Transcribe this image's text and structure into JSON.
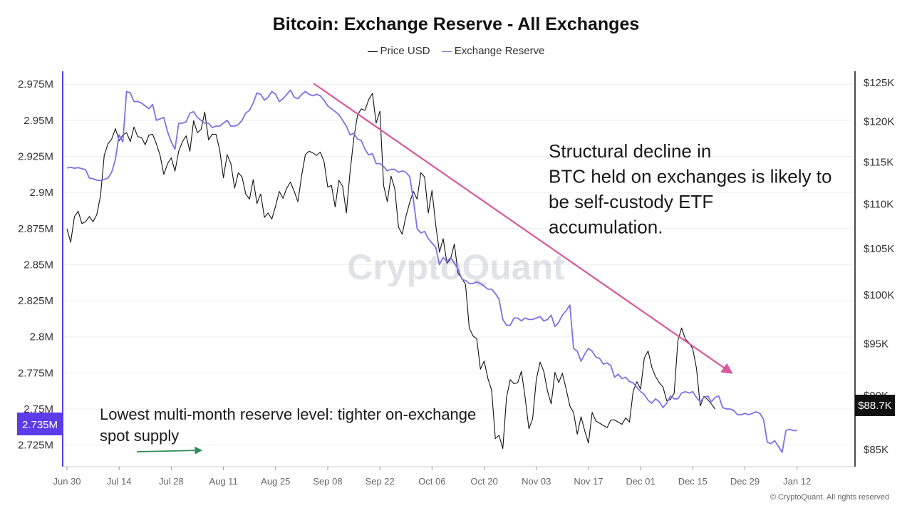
{
  "page": {
    "title": "Bitcoin: Exchange Reserve - All Exchanges",
    "legend": [
      "Price USD",
      "Exchange Reserve"
    ],
    "watermark": "CryptoQuant",
    "copyright": "© CryptoQuant. All rights reserved"
  },
  "colors": {
    "price": "#111111",
    "reserve": "#7b72e9",
    "trend_arrow": "#d9579a",
    "support_arrow": "#2e8b57",
    "reserve_badge": "#5c3be8",
    "price_badge": "#111111"
  },
  "chart_data": {
    "type": "line",
    "title": "Bitcoin: Exchange Reserve - All Exchanges",
    "x_tick_labels": [
      "Jun 30",
      "Jul 14",
      "Jul 28",
      "Aug 11",
      "Aug 25",
      "Sep 08",
      "Sep 22",
      "Oct 06",
      "Oct 20",
      "Nov 03",
      "Nov 17",
      "Dec 01",
      "Dec 15",
      "Dec 29",
      "Jan 12"
    ],
    "x_tick_positions_days": [
      0,
      14,
      28,
      42,
      56,
      70,
      84,
      98,
      112,
      126,
      140,
      154,
      168,
      182,
      196
    ],
    "y_left": {
      "label": "Exchange Reserve",
      "ticks": [
        "2.975M",
        "2.95M",
        "2.925M",
        "2.9M",
        "2.875M",
        "2.85M",
        "2.825M",
        "2.8M",
        "2.775M",
        "2.75M",
        "2.725M"
      ],
      "tick_values": [
        2.975,
        2.95,
        2.925,
        2.9,
        2.875,
        2.85,
        2.825,
        2.8,
        2.775,
        2.75,
        2.725
      ],
      "range": [
        2.71,
        2.984
      ]
    },
    "y_right": {
      "label": "Price USD",
      "ticks": [
        "$125K",
        "$120K",
        "$115K",
        "$110K",
        "$105K",
        "$100K",
        "$95K",
        "$90K",
        "$85K"
      ],
      "tick_values": [
        125,
        120,
        115,
        110,
        105,
        100,
        95,
        90,
        85
      ],
      "scale": "log",
      "range": [
        83.5,
        126.5
      ]
    },
    "series": [
      {
        "name": "Price USD",
        "axis": "right",
        "values": [
          107.2,
          105.7,
          108.6,
          109.2,
          107.8,
          108.0,
          108.6,
          108.0,
          108.8,
          111.0,
          115.8,
          117.2,
          117.8,
          119.1,
          117.6,
          118.3,
          118.6,
          117.5,
          119.3,
          118.1,
          118.0,
          117.1,
          118.3,
          118.4,
          117.2,
          115.8,
          113.5,
          114.8,
          115.5,
          113.9,
          116.3,
          117.5,
          118.2,
          116.3,
          120.1,
          118.6,
          119.0,
          121.2,
          117.7,
          118.4,
          118.4,
          116.5,
          113.1,
          115.9,
          114.8,
          111.9,
          113.7,
          113.2,
          111.2,
          110.6,
          112.9,
          110.1,
          111.2,
          108.5,
          109.0,
          108.3,
          109.8,
          111.5,
          110.7,
          111.9,
          112.6,
          111.5,
          110.3,
          113.4,
          115.9,
          116.3,
          116.1,
          115.8,
          116.2,
          115.1,
          112.0,
          112.2,
          109.7,
          112.8,
          112.1,
          109.0,
          113.8,
          117.9,
          120.8,
          121.6,
          121.4,
          122.8,
          123.6,
          119.8,
          121.3,
          112.2,
          110.3,
          113.3,
          111.8,
          107.4,
          106.6,
          108.6,
          110.2,
          111.5,
          110.6,
          113.7,
          113.2,
          109.0,
          111.6,
          107.6,
          104.6,
          106.1,
          103.4,
          103.9,
          105.5,
          102.3,
          101.8,
          101.1,
          96.6,
          95.8,
          95.5,
          92.5,
          93.3,
          91.6,
          90.5,
          86.0,
          86.3,
          85.1,
          89.8,
          91.5,
          91.1,
          91.2,
          92.3,
          89.8,
          86.9,
          87.8,
          91.5,
          93.2,
          92.3,
          90.4,
          89.2,
          92.2,
          91.2,
          92.1,
          90.6,
          89.0,
          88.4,
          86.4,
          88.0,
          86.7,
          85.6,
          88.4,
          87.6,
          87.4,
          87.2,
          87.0,
          87.7,
          87.7,
          87.5,
          87.3,
          87.9,
          87.5,
          90.4,
          91.3,
          90.6,
          93.6,
          94.3,
          92.7,
          91.8,
          91.2,
          90.8,
          89.5,
          89.6,
          90.2,
          95.3,
          96.6,
          95.5,
          95.1,
          94.5,
          92.6,
          89.0,
          89.9,
          89.6,
          89.2,
          88.7
        ]
      },
      {
        "name": "Exchange Reserve",
        "axis": "left",
        "values": [
          2.917,
          2.9175,
          2.9168,
          2.9172,
          2.9165,
          2.9158,
          2.91,
          2.9095,
          2.9085,
          2.9082,
          2.909,
          2.91,
          2.914,
          2.923,
          2.94,
          2.935,
          2.97,
          2.969,
          2.963,
          2.963,
          2.962,
          2.96,
          2.958,
          2.961,
          2.95,
          2.951,
          2.952,
          2.942,
          2.935,
          2.93,
          2.948,
          2.948,
          2.949,
          2.955,
          2.956,
          2.952,
          2.95,
          2.948,
          2.948,
          2.945,
          2.946,
          2.946,
          2.948,
          2.95,
          2.946,
          2.946,
          2.947,
          2.95,
          2.955,
          2.957,
          2.962,
          2.969,
          2.968,
          2.964,
          2.966,
          2.97,
          2.968,
          2.963,
          2.965,
          2.968,
          2.971,
          2.966,
          2.965,
          2.968,
          2.97,
          2.968,
          2.967,
          2.968,
          2.967,
          2.964,
          2.96,
          2.958,
          2.956,
          2.954,
          2.95,
          2.946,
          2.94,
          2.941,
          2.937,
          2.936,
          2.93,
          2.926,
          2.927,
          2.92,
          2.92,
          2.918,
          2.915,
          2.916,
          2.916,
          2.914,
          2.915,
          2.914,
          2.911,
          2.895,
          2.875,
          2.872,
          2.873,
          2.868,
          2.865,
          2.862,
          2.85,
          2.855,
          2.852,
          2.855,
          2.851,
          2.847,
          2.84,
          2.839,
          2.837,
          2.837,
          2.838,
          2.837,
          2.835,
          2.833,
          2.833,
          2.83,
          2.826,
          2.812,
          2.808,
          2.808,
          2.813,
          2.813,
          2.811,
          2.813,
          2.812,
          2.812,
          2.813,
          2.814,
          2.811,
          2.812,
          2.815,
          2.807,
          2.81,
          2.815,
          2.818,
          2.822,
          2.792,
          2.79,
          2.783,
          2.788,
          2.792,
          2.79,
          2.786,
          2.785,
          2.781,
          2.782,
          2.78,
          2.772,
          2.774,
          2.771,
          2.772,
          2.769,
          2.768,
          2.765,
          2.762,
          2.76,
          2.756,
          2.754,
          2.757,
          2.755,
          2.751,
          2.754,
          2.759,
          2.757,
          2.757,
          2.761,
          2.762,
          2.761,
          2.762,
          2.758,
          2.755,
          2.758,
          2.759,
          2.755,
          2.758,
          2.759,
          2.751,
          2.75,
          2.75,
          2.749,
          2.746,
          2.746,
          2.747,
          2.746,
          2.747,
          2.748,
          2.747,
          2.743,
          2.727,
          2.726,
          2.728,
          2.724,
          2.72,
          2.735,
          2.736,
          2.735,
          2.735
        ]
      }
    ],
    "current_values": {
      "reserve_label": "2.735M",
      "price_label": "$88.7K"
    },
    "annotations": {
      "trend_text": [
        "Structural decline in",
        "BTC held on exchanges is likely to",
        "be self-custody ETF",
        "accumulation."
      ],
      "support_text": [
        "Lowest multi-month reserve level: tighter on-exchange",
        "spot supply"
      ]
    },
    "grid": true,
    "legend_position": "top-center"
  }
}
